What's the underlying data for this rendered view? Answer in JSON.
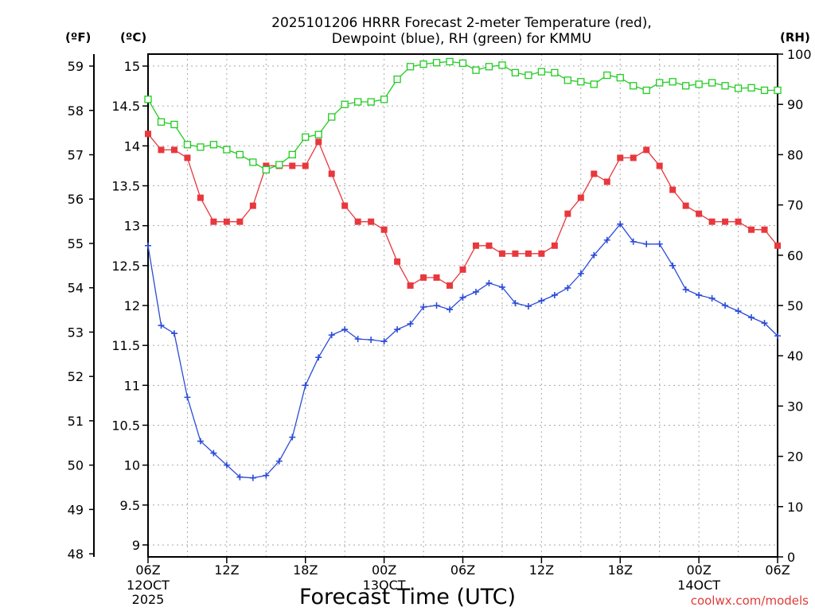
{
  "chart_data": {
    "type": "line",
    "title_line1": "2025101206 HRRR Forecast 2-meter Temperature (red),",
    "title_line2": "Dewpoint (blue), RH (green) for KMMU",
    "xlabel": "Forecast Time (UTC)",
    "credit": "coolwx.com/models",
    "unit_left_f": "(ºF)",
    "unit_left_c": "(ºC)",
    "unit_right": "(RH)",
    "x_start_hour": 0,
    "x_end_hour": 48,
    "x_ticks": [
      {
        "hour": 0,
        "label": "06Z",
        "sub1": "12OCT",
        "sub2": "2025"
      },
      {
        "hour": 6,
        "label": "12Z",
        "sub1": "",
        "sub2": ""
      },
      {
        "hour": 12,
        "label": "18Z",
        "sub1": "",
        "sub2": ""
      },
      {
        "hour": 18,
        "label": "00Z",
        "sub1": "13OCT",
        "sub2": ""
      },
      {
        "hour": 24,
        "label": "06Z",
        "sub1": "",
        "sub2": ""
      },
      {
        "hour": 30,
        "label": "12Z",
        "sub1": "",
        "sub2": ""
      },
      {
        "hour": 36,
        "label": "18Z",
        "sub1": "",
        "sub2": ""
      },
      {
        "hour": 42,
        "label": "00Z",
        "sub1": "14OCT",
        "sub2": ""
      },
      {
        "hour": 48,
        "label": "06Z",
        "sub1": "",
        "sub2": ""
      }
    ],
    "ylim_c": [
      8.85,
      15.15
    ],
    "yticks_c": [
      "9",
      "9.5",
      "10",
      "10.5",
      "11",
      "11.5",
      "12",
      "12.5",
      "13",
      "13.5",
      "14",
      "14.5",
      "15"
    ],
    "yticks_f": [
      "48",
      "49",
      "50",
      "51",
      "52",
      "53",
      "54",
      "55",
      "56",
      "57",
      "58",
      "59"
    ],
    "ylim_rh": [
      0,
      100
    ],
    "yticks_rh": [
      "0",
      "10",
      "20",
      "30",
      "40",
      "50",
      "60",
      "70",
      "80",
      "90",
      "100"
    ],
    "series": [
      {
        "key": "temperature",
        "color": "#e8383d",
        "marker": "filled-square",
        "values": [
          14.15,
          13.95,
          13.95,
          13.85,
          13.35,
          13.05,
          13.05,
          13.05,
          13.25,
          13.75,
          13.75,
          13.75,
          13.75,
          14.05,
          13.65,
          13.25,
          13.05,
          13.05,
          12.95,
          12.55,
          12.25,
          12.35,
          12.35,
          12.25,
          12.45,
          12.75,
          12.75,
          12.65,
          12.65,
          12.65,
          12.65,
          12.75,
          13.15,
          13.35,
          13.65,
          13.55,
          13.85,
          13.85,
          13.95,
          13.75,
          13.45,
          13.25,
          13.15,
          13.05,
          13.05,
          13.05,
          12.95,
          12.95,
          12.75
        ]
      },
      {
        "key": "dewpoint",
        "color": "#2b4bd8",
        "marker": "plus",
        "values": [
          12.75,
          11.75,
          11.65,
          10.85,
          10.3,
          10.15,
          10.0,
          9.85,
          9.84,
          9.87,
          10.05,
          10.35,
          11.0,
          11.35,
          11.63,
          11.7,
          11.58,
          11.57,
          11.55,
          11.7,
          11.77,
          11.98,
          12.0,
          11.95,
          12.1,
          12.17,
          12.28,
          12.23,
          12.03,
          11.99,
          12.06,
          12.13,
          12.22,
          12.4,
          12.63,
          12.82,
          13.02,
          12.8,
          12.77,
          12.77,
          12.5,
          12.2,
          12.13,
          12.09,
          12.0,
          11.93,
          11.85,
          11.78,
          11.62
        ]
      },
      {
        "key": "rh",
        "color": "#22cc22",
        "marker": "open-square",
        "values": [
          91,
          86.5,
          86,
          82,
          81.5,
          82,
          81,
          80,
          78.5,
          77,
          78,
          80,
          83.5,
          84,
          87.5,
          90,
          90.5,
          90.5,
          91,
          95,
          97.5,
          98,
          98.3,
          98.5,
          98.2,
          96.8,
          97.5,
          97.8,
          96.3,
          95.8,
          96.5,
          96.3,
          94.8,
          94.5,
          94,
          95.8,
          95.3,
          93.7,
          92.8,
          94.3,
          94.5,
          93.7,
          94,
          94.3,
          93.7,
          93.2,
          93.3,
          92.8,
          92.8
        ]
      }
    ]
  }
}
